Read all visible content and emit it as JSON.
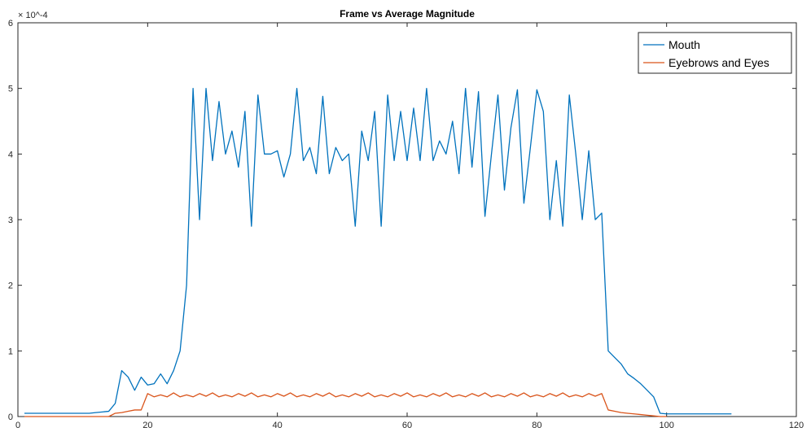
{
  "chart_data": {
    "type": "line",
    "title": "Frame vs Average Magnitude",
    "xlabel": "",
    "ylabel": "",
    "y_exponent": "× 10^-4",
    "xlim": [
      0,
      120
    ],
    "ylim": [
      0,
      6
    ],
    "x_ticks": [
      "0",
      "20",
      "40",
      "60",
      "80",
      "100",
      "120"
    ],
    "y_ticks": [
      "0",
      "1",
      "2",
      "3",
      "4",
      "5",
      "6"
    ],
    "grid": false,
    "legend_position": "top-right",
    "series": [
      {
        "name": "Mouth",
        "color": "#0072BD",
        "x": [
          1,
          2,
          3,
          4,
          5,
          6,
          7,
          8,
          9,
          10,
          11,
          12,
          13,
          14,
          15,
          16,
          17,
          18,
          19,
          20,
          21,
          22,
          23,
          24,
          25,
          26,
          27,
          28,
          29,
          30,
          31,
          32,
          33,
          34,
          35,
          36,
          37,
          38,
          39,
          40,
          41,
          42,
          43,
          44,
          45,
          46,
          47,
          48,
          49,
          50,
          51,
          52,
          53,
          54,
          55,
          56,
          57,
          58,
          59,
          60,
          61,
          62,
          63,
          64,
          65,
          66,
          67,
          68,
          69,
          70,
          71,
          72,
          73,
          74,
          75,
          76,
          77,
          78,
          79,
          80,
          81,
          82,
          83,
          84,
          85,
          86,
          87,
          88,
          89,
          90,
          91,
          92,
          93,
          94,
          95,
          96,
          97,
          98,
          99,
          100,
          101,
          102,
          103,
          104,
          105,
          106,
          107,
          108,
          109,
          110
        ],
        "y": [
          0.05,
          0.05,
          0.05,
          0.05,
          0.05,
          0.05,
          0.05,
          0.05,
          0.05,
          0.05,
          0.05,
          0.06,
          0.07,
          0.08,
          0.2,
          0.7,
          0.6,
          0.4,
          0.6,
          0.48,
          0.5,
          0.65,
          0.5,
          0.7,
          1.0,
          2.0,
          5.0,
          3.0,
          5.0,
          3.9,
          4.8,
          4.0,
          4.35,
          3.8,
          4.65,
          2.9,
          4.9,
          4.0,
          4.0,
          4.05,
          3.65,
          4.0,
          5.0,
          3.9,
          4.1,
          3.7,
          4.88,
          3.7,
          4.1,
          3.9,
          4.0,
          2.9,
          4.35,
          3.9,
          4.65,
          2.9,
          4.9,
          3.9,
          4.65,
          3.9,
          4.7,
          3.9,
          5.0,
          3.9,
          4.2,
          4.0,
          4.5,
          3.7,
          5.0,
          3.8,
          4.95,
          3.05,
          4.0,
          4.9,
          3.45,
          4.4,
          4.98,
          3.25,
          4.1,
          4.98,
          4.65,
          3.0,
          3.9,
          2.9,
          4.9,
          4.0,
          3.0,
          4.05,
          3.0,
          3.1,
          1.0,
          0.9,
          0.8,
          0.65,
          0.58,
          0.5,
          0.4,
          0.3,
          0.05,
          0.04,
          0.04,
          0.04,
          0.04,
          0.04,
          0.04,
          0.04,
          0.04,
          0.04,
          0.04,
          0.04
        ]
      },
      {
        "name": "Eyebrows and Eyes",
        "color": "#D95319",
        "x": [
          1,
          2,
          3,
          4,
          5,
          6,
          7,
          8,
          9,
          10,
          11,
          12,
          13,
          14,
          15,
          16,
          17,
          18,
          19,
          20,
          21,
          22,
          23,
          24,
          25,
          26,
          27,
          28,
          29,
          30,
          31,
          32,
          33,
          34,
          35,
          36,
          37,
          38,
          39,
          40,
          41,
          42,
          43,
          44,
          45,
          46,
          47,
          48,
          49,
          50,
          51,
          52,
          53,
          54,
          55,
          56,
          57,
          58,
          59,
          60,
          61,
          62,
          63,
          64,
          65,
          66,
          67,
          68,
          69,
          70,
          71,
          72,
          73,
          74,
          75,
          76,
          77,
          78,
          79,
          80,
          81,
          82,
          83,
          84,
          85,
          86,
          87,
          88,
          89,
          90,
          91,
          92,
          93,
          94,
          95,
          96,
          97,
          98,
          99,
          100
        ],
        "y": [
          0.0,
          0.0,
          0.0,
          0.0,
          0.0,
          0.0,
          0.0,
          0.0,
          0.0,
          0.0,
          0.0,
          0.0,
          0.0,
          0.0,
          0.05,
          0.06,
          0.08,
          0.1,
          0.1,
          0.35,
          0.3,
          0.33,
          0.3,
          0.36,
          0.3,
          0.33,
          0.3,
          0.35,
          0.31,
          0.36,
          0.3,
          0.33,
          0.3,
          0.35,
          0.31,
          0.36,
          0.3,
          0.33,
          0.3,
          0.35,
          0.31,
          0.36,
          0.3,
          0.33,
          0.3,
          0.35,
          0.31,
          0.36,
          0.3,
          0.33,
          0.3,
          0.35,
          0.31,
          0.36,
          0.3,
          0.33,
          0.3,
          0.35,
          0.31,
          0.36,
          0.3,
          0.33,
          0.3,
          0.35,
          0.31,
          0.36,
          0.3,
          0.33,
          0.3,
          0.35,
          0.31,
          0.36,
          0.3,
          0.33,
          0.3,
          0.35,
          0.31,
          0.36,
          0.3,
          0.33,
          0.3,
          0.35,
          0.31,
          0.36,
          0.3,
          0.33,
          0.3,
          0.35,
          0.31,
          0.35,
          0.1,
          0.08,
          0.06,
          0.05,
          0.04,
          0.03,
          0.02,
          0.01,
          0.0,
          0.0
        ]
      }
    ]
  }
}
